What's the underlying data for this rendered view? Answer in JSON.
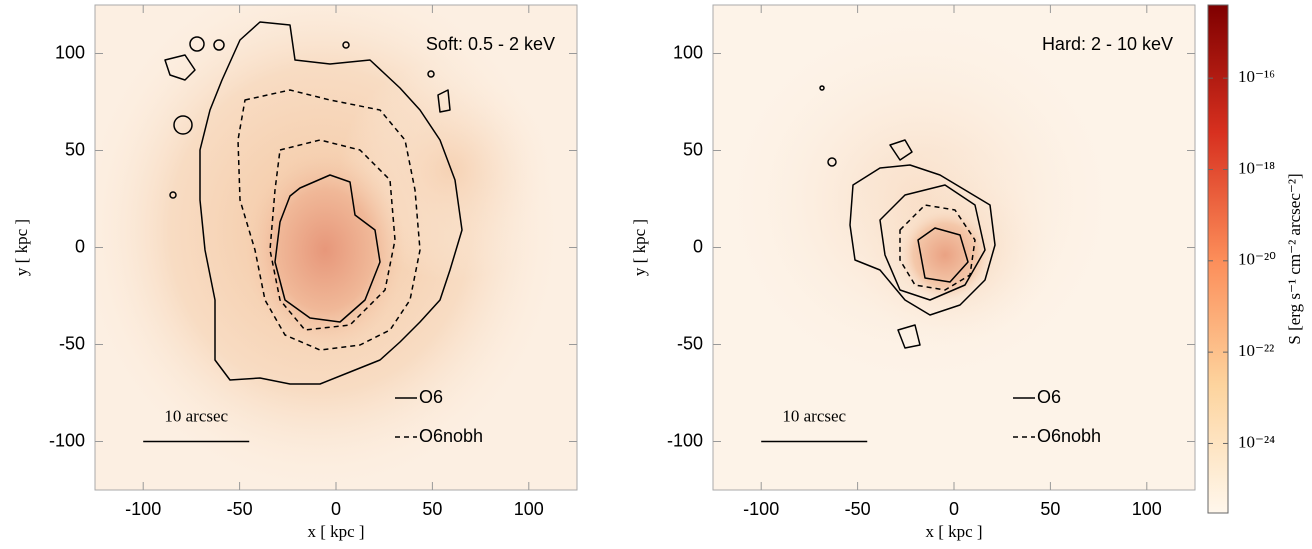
{
  "chart_data": [
    {
      "type": "heatmap",
      "annotation": "Soft: 0.5 - 2 keV",
      "xlabel": "x [ kpc ]",
      "ylabel": "y [ kpc ]",
      "xlim": [
        -125,
        125
      ],
      "ylim": [
        -125,
        125
      ],
      "xticks": [
        -100,
        -50,
        0,
        50,
        100
      ],
      "yticks": [
        -100,
        -50,
        0,
        50,
        100
      ],
      "series": [
        {
          "name": "O6",
          "color": "#000000",
          "dash": "solid"
        },
        {
          "name": "O6nobh",
          "color": "#000000",
          "dash": "dashed"
        }
      ],
      "scalebar": {
        "label": "10 arcsec",
        "x": [
          -100,
          -45
        ],
        "y": -100
      }
    },
    {
      "type": "heatmap",
      "annotation": "Hard: 2 - 10 keV",
      "xlabel": "x [ kpc ]",
      "ylabel": "y [ kpc ]",
      "xlim": [
        -125,
        125
      ],
      "ylim": [
        -125,
        125
      ],
      "xticks": [
        -100,
        -50,
        0,
        50,
        100
      ],
      "yticks": [
        -100,
        -50,
        0,
        50,
        100
      ],
      "series": [
        {
          "name": "O6",
          "color": "#000000",
          "dash": "solid"
        },
        {
          "name": "O6nobh",
          "color": "#000000",
          "dash": "dashed"
        }
      ],
      "scalebar": {
        "label": "10 arcsec",
        "x": [
          -100,
          -45
        ],
        "y": -100
      },
      "colorbar": {
        "label": "S [erg s⁻¹ cm⁻² arcsec⁻²]",
        "log": true,
        "lim": [
          3e-26,
          4e-15
        ],
        "ticks": [
          {
            "value": 1e-24,
            "label": "10⁻²⁴"
          },
          {
            "value": 1e-22,
            "label": "10⁻²²"
          },
          {
            "value": 1e-20,
            "label": "10⁻²⁰"
          },
          {
            "value": 1e-18,
            "label": "10⁻¹⁸"
          },
          {
            "value": 1e-16,
            "label": "10⁻¹⁶"
          }
        ],
        "colormap": [
          "#fff7ec",
          "#fdd49e",
          "#fc8d59",
          "#d7301f",
          "#7f0000"
        ]
      }
    }
  ]
}
